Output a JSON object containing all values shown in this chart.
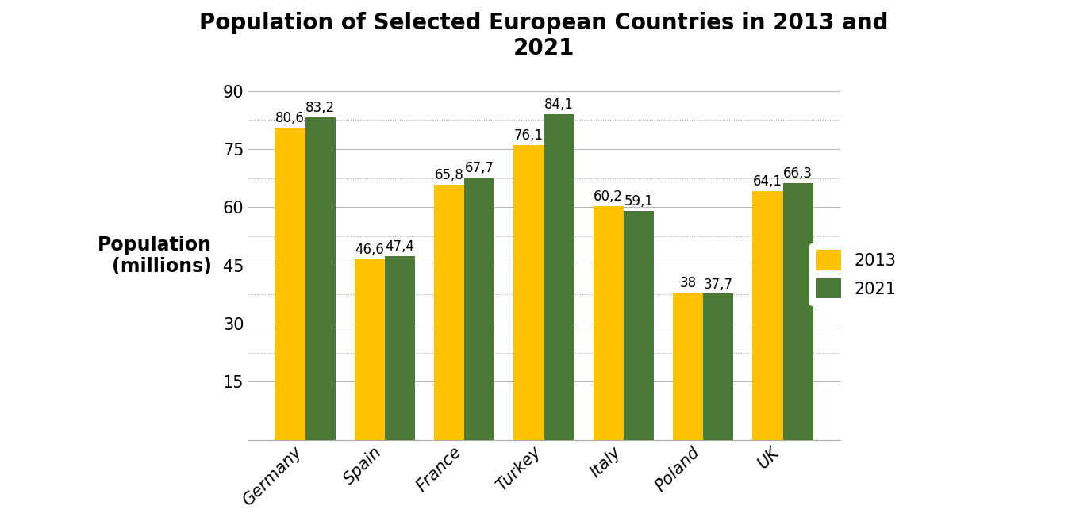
{
  "title": "Population of Selected European Countries in 2013 and\n2021",
  "ylabel": "Population\n(millions)",
  "categories": [
    "Germany",
    "Spain",
    "France",
    "Turkey",
    "Italy",
    "Poland",
    "UK"
  ],
  "values_2013": [
    80.6,
    46.6,
    65.8,
    76.1,
    60.2,
    38.0,
    64.1
  ],
  "values_2021": [
    83.2,
    47.4,
    67.7,
    84.1,
    59.1,
    37.7,
    66.3
  ],
  "labels_2013": [
    "80,6",
    "46,6",
    "65,8",
    "76,1",
    "60,2",
    "38",
    "64,1"
  ],
  "labels_2021": [
    "83,2",
    "47,4",
    "67,7",
    "84,1",
    "59,1",
    "37,7",
    "66,3"
  ],
  "color_2013": "#FFC200",
  "color_2021": "#4A7A35",
  "legend_labels": [
    "2013",
    "2021"
  ],
  "ylim": [
    0,
    95
  ],
  "yticks": [
    15,
    30,
    45,
    60,
    75,
    90
  ],
  "bar_width": 0.38,
  "title_fontsize": 20,
  "axis_label_fontsize": 17,
  "tick_fontsize": 15,
  "bar_label_fontsize": 12,
  "legend_fontsize": 15,
  "background_color": "#FFFFFF"
}
